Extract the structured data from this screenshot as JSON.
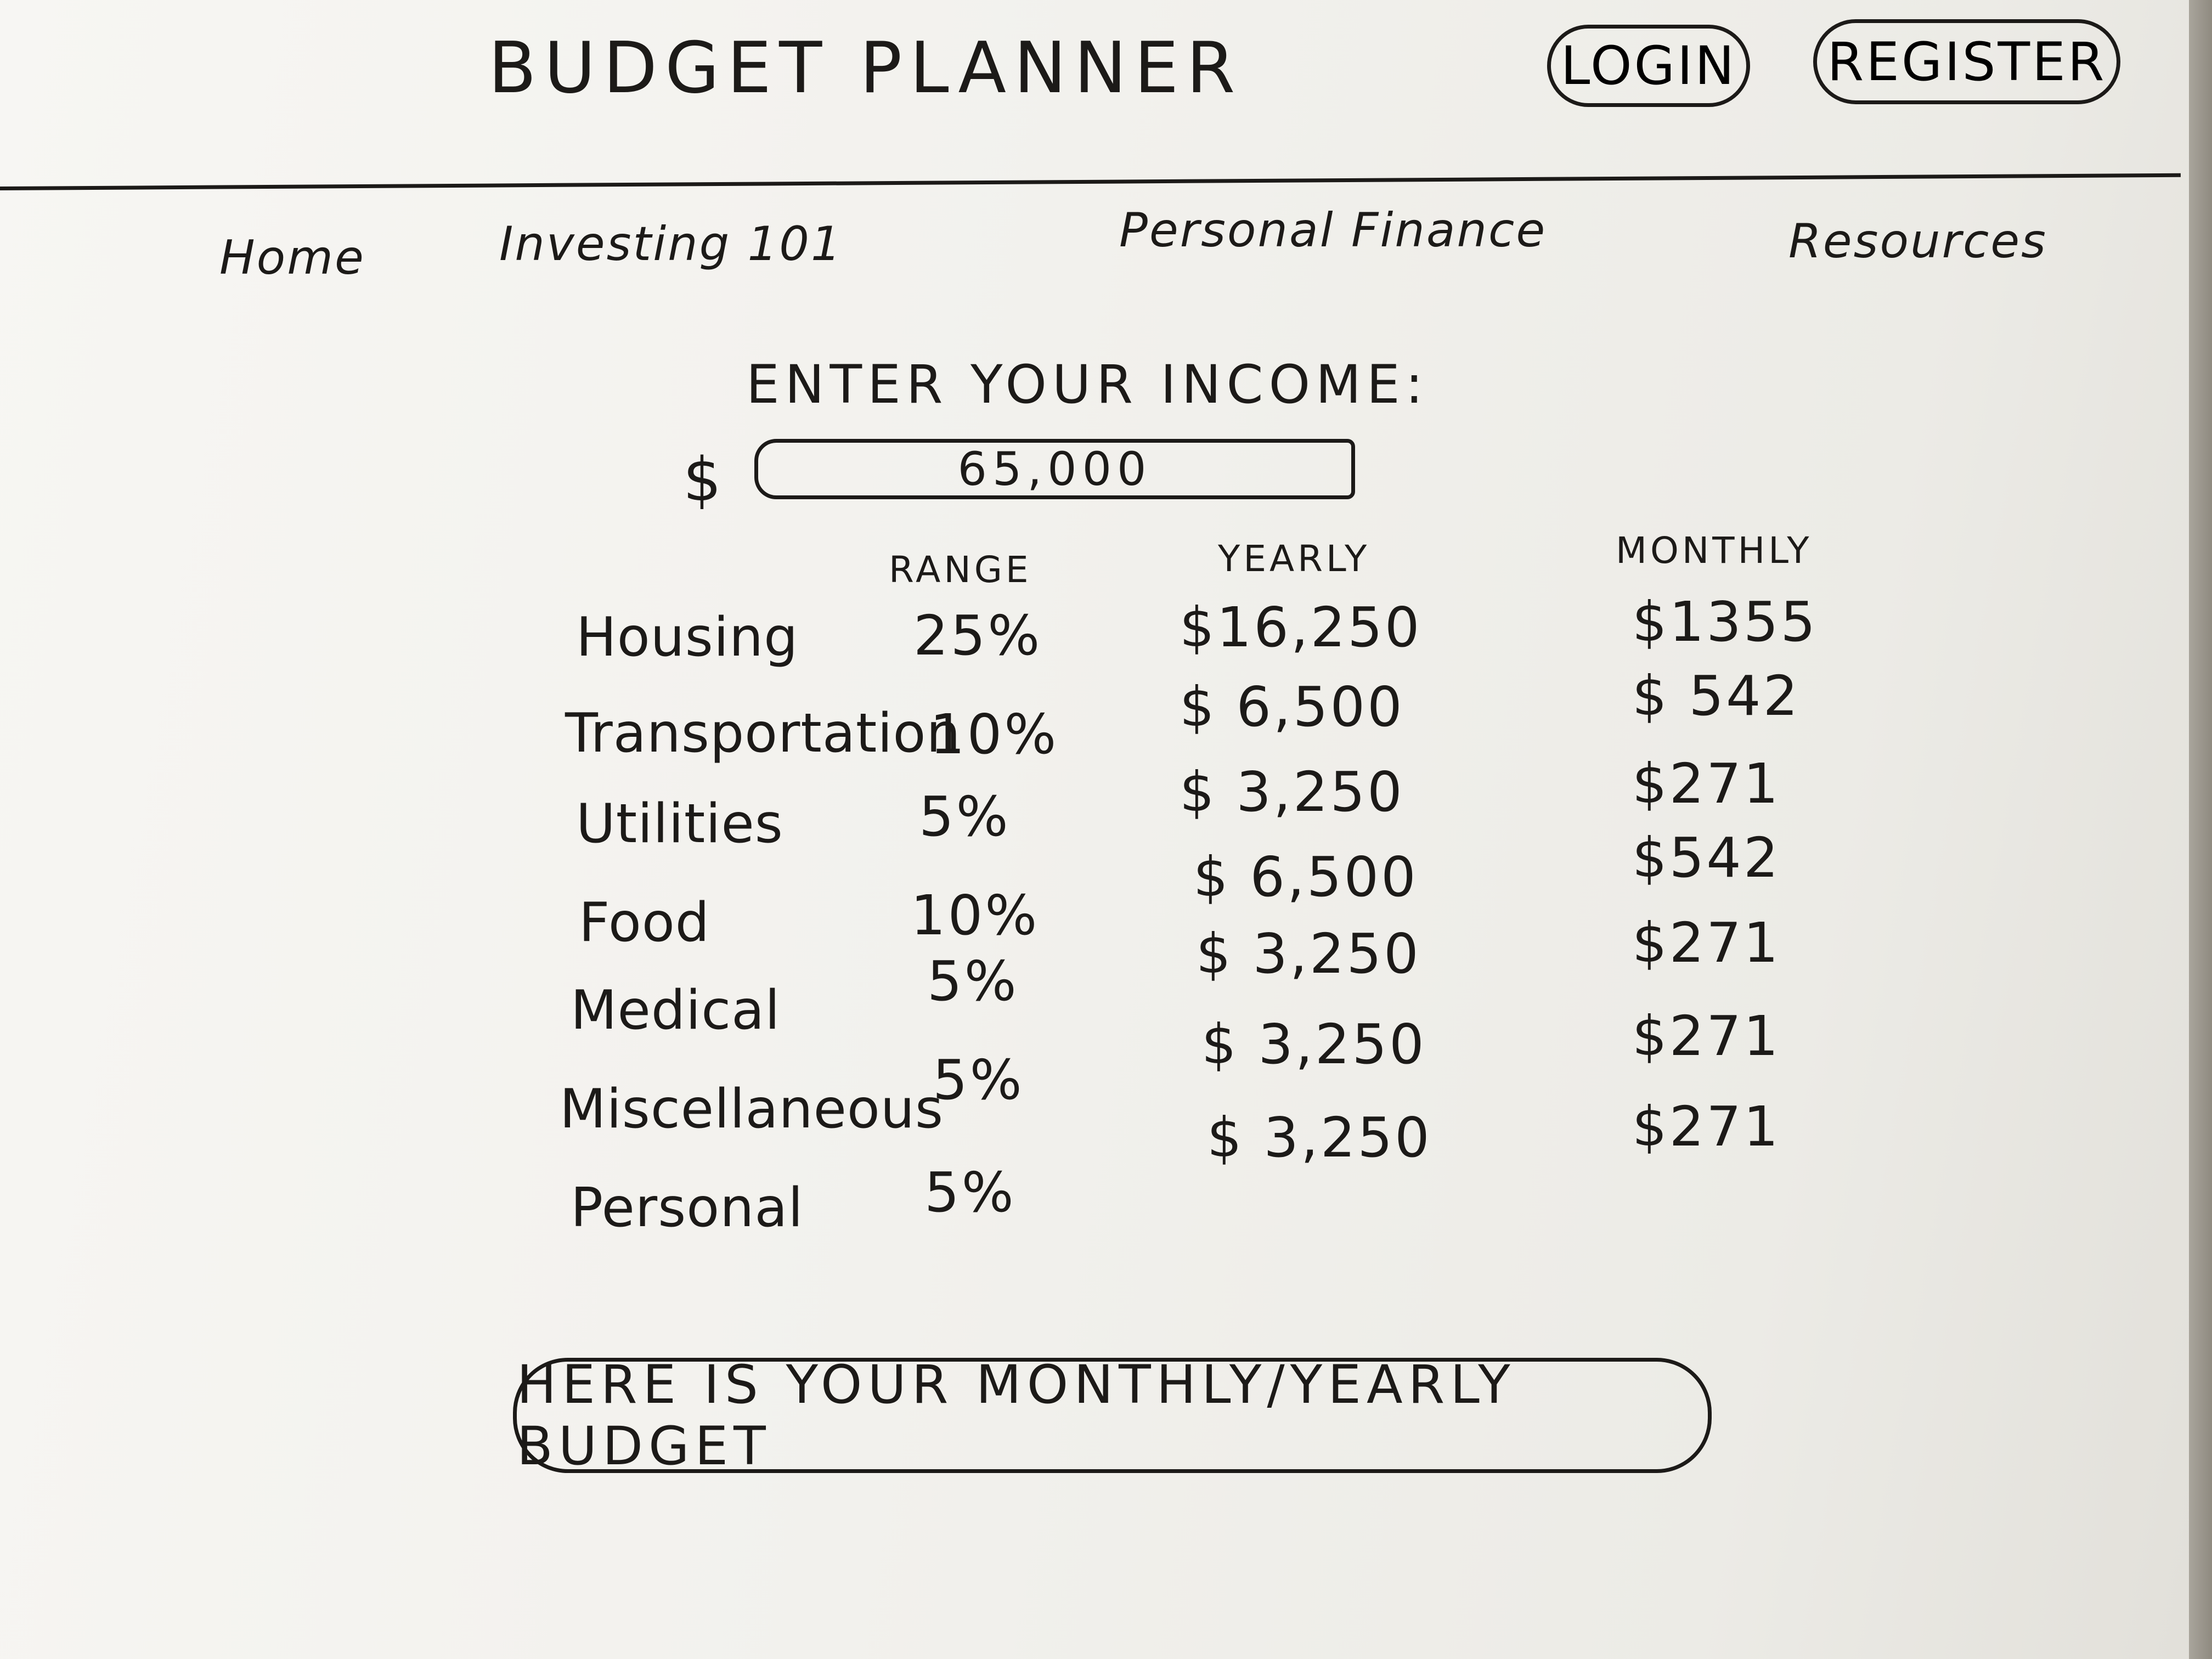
{
  "app": {
    "title": "BUDGET PLANNER",
    "login_label": "LOGIN",
    "register_label": "REGISTER"
  },
  "nav": {
    "items": [
      {
        "label": "Home"
      },
      {
        "label": "Investing 101"
      },
      {
        "label": "Personal Finance"
      },
      {
        "label": "Resources"
      }
    ]
  },
  "income": {
    "prompt": "ENTER YOUR INCOME:",
    "currency_symbol": "$",
    "value": "65,000"
  },
  "table": {
    "headers": {
      "range": "RANGE",
      "yearly": "YEARLY",
      "monthly": "MONTHLY"
    },
    "rows": [
      {
        "category": "Housing",
        "range": "25%",
        "yearly": "$16,250",
        "monthly": "$1355"
      },
      {
        "category": "Transportation",
        "range": "10%",
        "yearly": "$ 6,500",
        "monthly": "$ 542"
      },
      {
        "category": "Utilities",
        "range": "5%",
        "yearly": "$ 3,250",
        "monthly": "$271"
      },
      {
        "category": "Food",
        "range": "10%",
        "yearly": "$ 6,500",
        "monthly": "$542"
      },
      {
        "category": "Medical",
        "range": "5%",
        "yearly": "$ 3,250",
        "monthly": "$271"
      },
      {
        "category": "Miscellaneous",
        "range": "5%",
        "yearly": "$ 3,250",
        "monthly": "$271"
      },
      {
        "category": "Personal",
        "range": "5%",
        "yearly": "$ 3,250",
        "monthly": "$271"
      }
    ]
  },
  "result": {
    "label": "HERE IS YOUR MONTHLY/YEARLY BUDGET"
  },
  "colors": {
    "ink": "#1c1a18",
    "paper": "#f4f3ef"
  }
}
